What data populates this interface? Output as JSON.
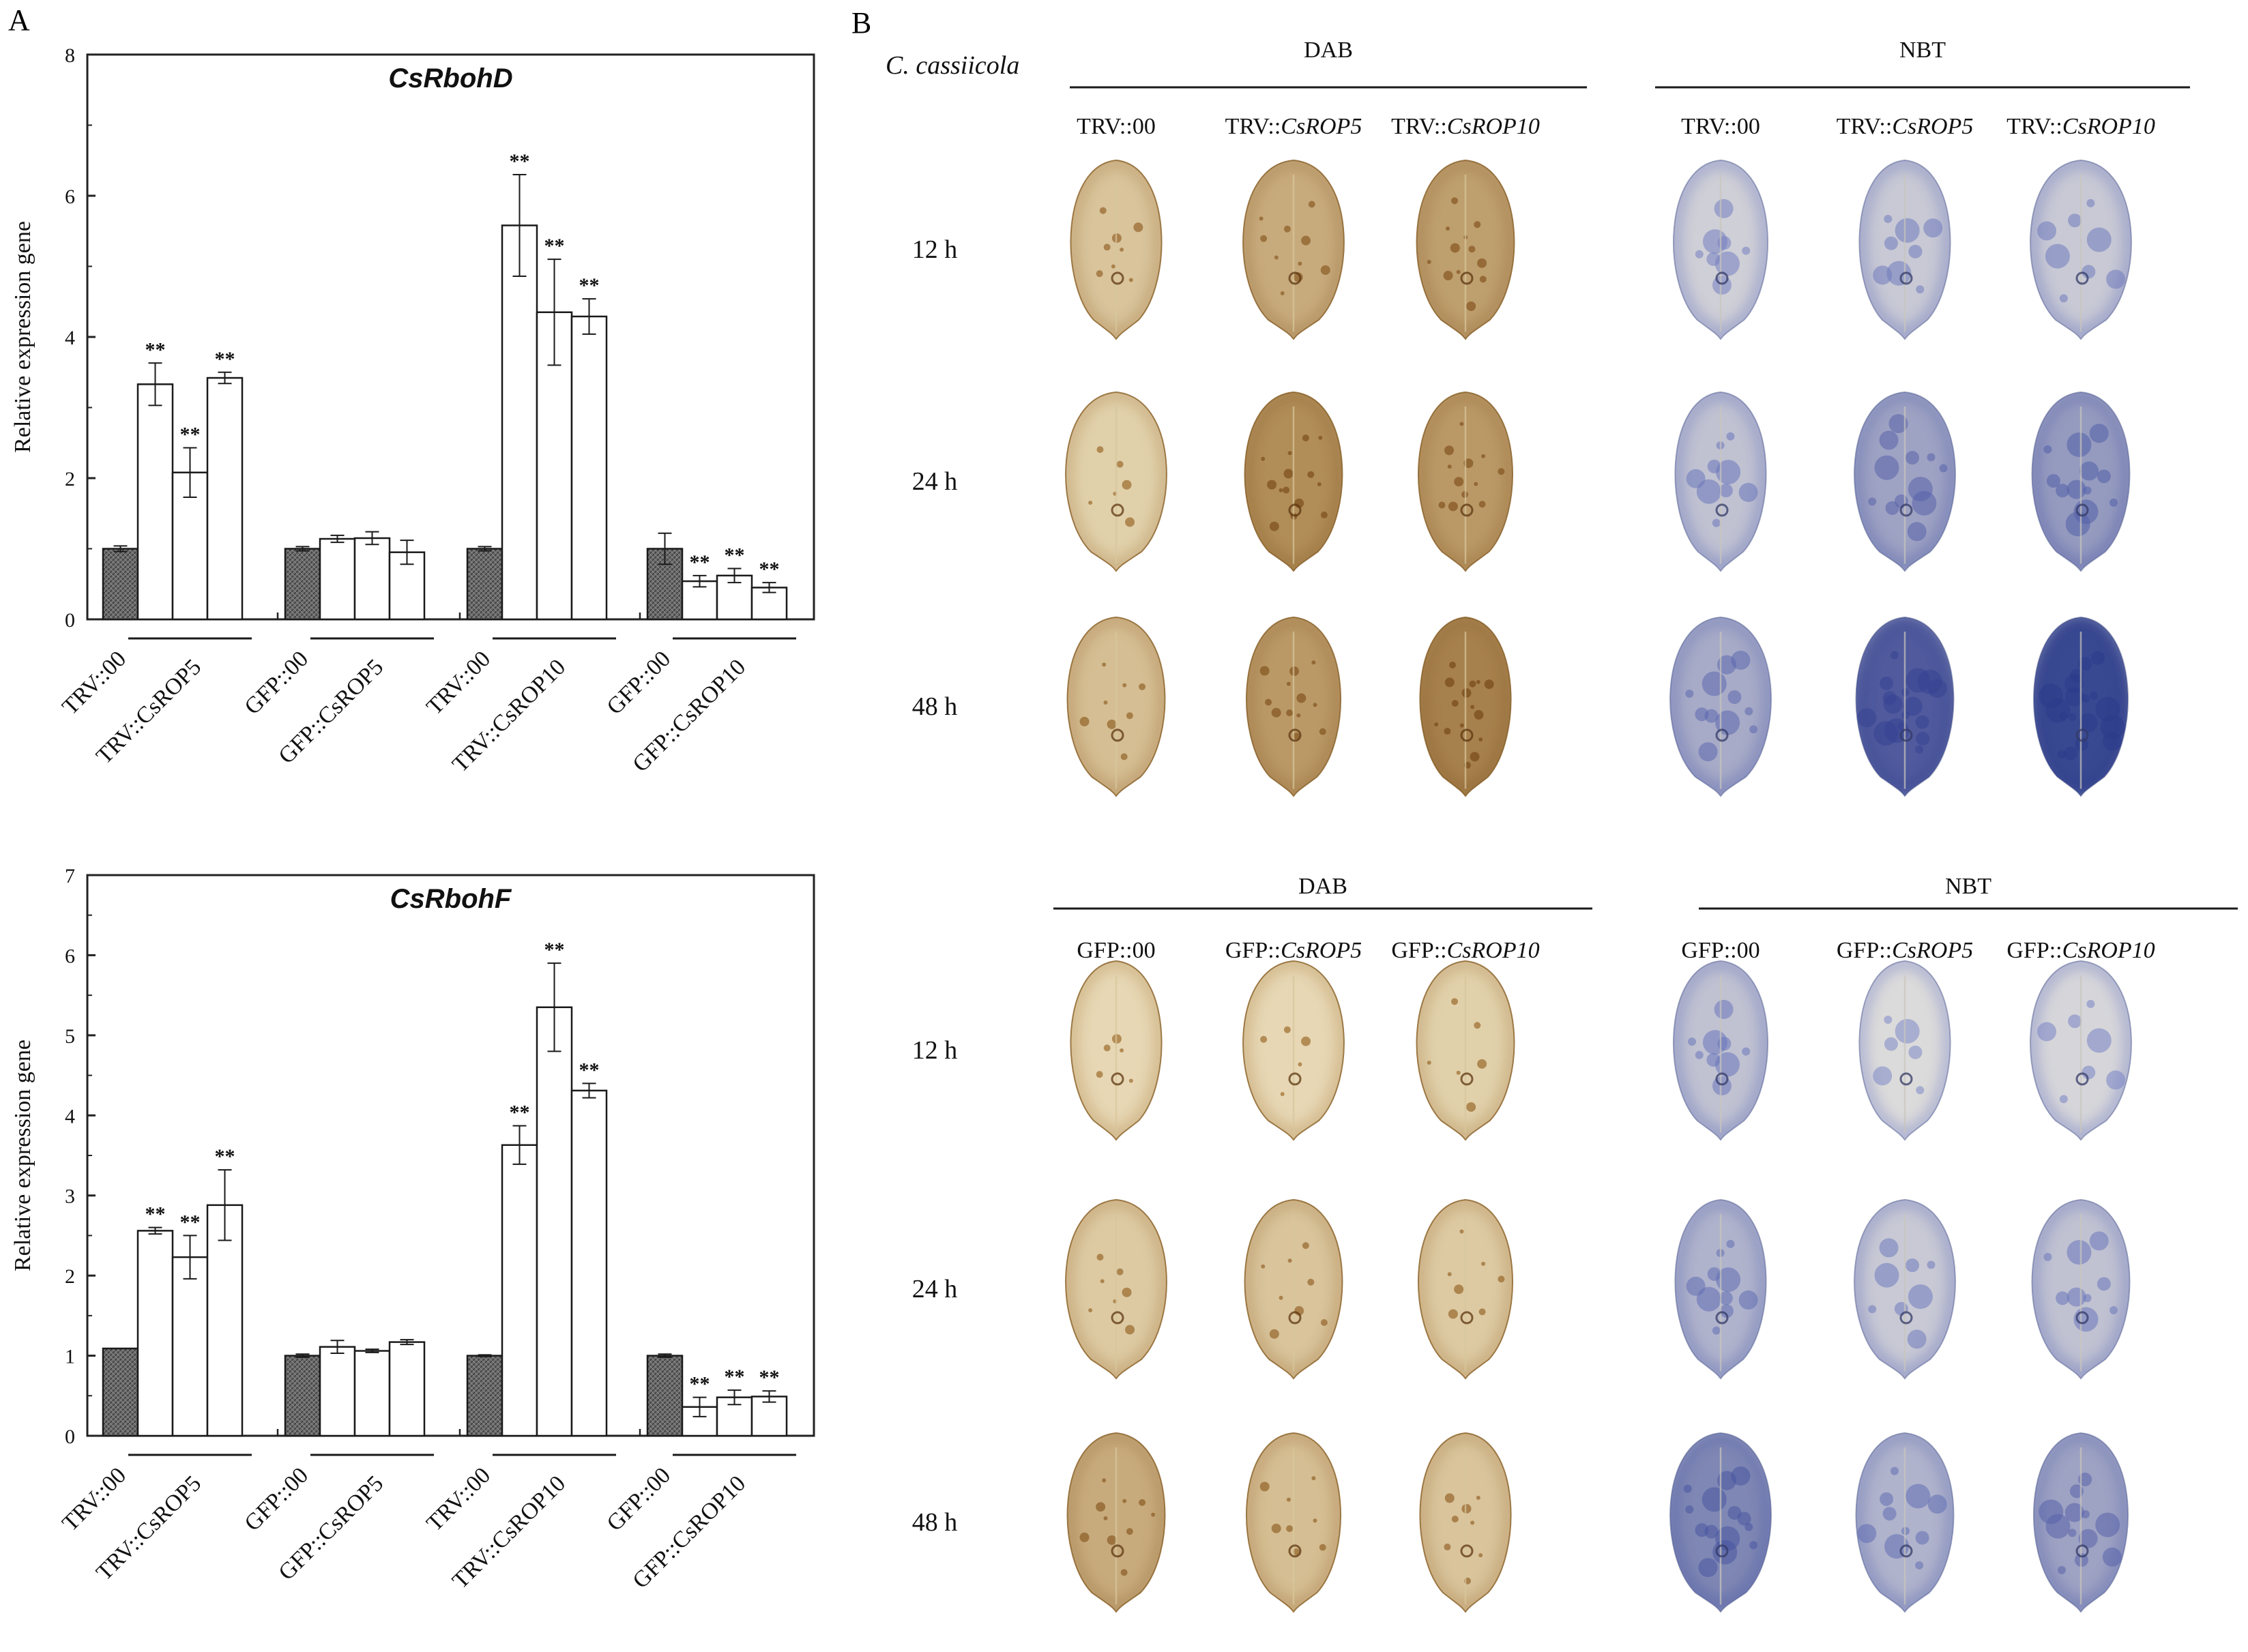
{
  "panel_labels": {
    "a": "A",
    "b": "B"
  },
  "colors": {
    "control_bar": "#6b6b6b",
    "treated_bar": "#ffffff",
    "axis": "#222222",
    "dab_leaf": "#c8a46a",
    "dab_spot": "#8a5a22",
    "nbt_leaf": "#ece9df",
    "nbt_stain": "#4a58b0"
  },
  "chart_data": [
    {
      "type": "bar",
      "title": "CsRbohD",
      "ylabel": "Relative expression gene",
      "xlabel": "",
      "ylim": [
        0,
        8
      ],
      "yticks": [
        "0",
        "2",
        "4",
        "6",
        "8"
      ],
      "groups": [
        {
          "control": "TRV::00",
          "treatment": "TRV::CsROP5",
          "values": [
            1.0,
            3.33,
            2.08,
            3.42
          ],
          "errors": [
            0.04,
            0.3,
            0.35,
            0.08
          ],
          "marks": [
            "",
            "**",
            "**",
            "**"
          ]
        },
        {
          "control": "GFP::00",
          "treatment": "GFP::CsROP5",
          "values": [
            1.0,
            1.14,
            1.15,
            0.95
          ],
          "errors": [
            0.03,
            0.05,
            0.09,
            0.17
          ],
          "marks": [
            "",
            "",
            "",
            ""
          ]
        },
        {
          "control": "TRV::00",
          "treatment": "TRV::CsROP10",
          "values": [
            1.0,
            5.58,
            4.35,
            4.29
          ],
          "errors": [
            0.03,
            0.72,
            0.75,
            0.25
          ],
          "marks": [
            "",
            "**",
            "**",
            "**"
          ]
        },
        {
          "control": "GFP::00",
          "treatment": "GFP::CsROP10",
          "values": [
            1.0,
            0.54,
            0.62,
            0.45
          ],
          "errors": [
            0.22,
            0.08,
            0.1,
            0.07
          ],
          "marks": [
            "",
            "**",
            "**",
            "**"
          ]
        }
      ]
    },
    {
      "type": "bar",
      "title": "CsRbohF",
      "ylabel": "Relative expression gene",
      "xlabel": "",
      "ylim": [
        0,
        7
      ],
      "yticks": [
        "0",
        "1",
        "2",
        "3",
        "4",
        "5",
        "6",
        "7"
      ],
      "groups": [
        {
          "control": "TRV::00",
          "treatment": "TRV::CsROP5",
          "values": [
            1.09,
            2.56,
            2.23,
            2.88
          ],
          "errors": [
            0.0,
            0.04,
            0.27,
            0.44
          ],
          "marks": [
            "",
            "**",
            "**",
            "**"
          ]
        },
        {
          "control": "GFP::00",
          "treatment": "GFP::CsROP5",
          "values": [
            1.0,
            1.11,
            1.06,
            1.17
          ],
          "errors": [
            0.02,
            0.08,
            0.02,
            0.03
          ],
          "marks": [
            "",
            "",
            "",
            ""
          ]
        },
        {
          "control": "TRV::00",
          "treatment": "TRV::CsROP10",
          "values": [
            1.0,
            3.63,
            5.35,
            4.31
          ],
          "errors": [
            0.01,
            0.24,
            0.55,
            0.09
          ],
          "marks": [
            "",
            "**",
            "**",
            "**"
          ]
        },
        {
          "control": "GFP::00",
          "treatment": "GFP::CsROP10",
          "values": [
            1.0,
            0.36,
            0.48,
            0.49
          ],
          "errors": [
            0.02,
            0.12,
            0.09,
            0.07
          ],
          "marks": [
            "",
            "**",
            "**",
            "**"
          ]
        }
      ]
    }
  ],
  "panel_b": {
    "pathogen": "C. cassiicola",
    "blocks": [
      {
        "groups": [
          {
            "stain": "DAB",
            "columns": [
              {
                "prefix": "TRV::",
                "gene": "00"
              },
              {
                "prefix": "TRV::",
                "gene": "CsROP5"
              },
              {
                "prefix": "TRV::",
                "gene": "CsROP10"
              }
            ]
          },
          {
            "stain": "NBT",
            "columns": [
              {
                "prefix": "TRV::",
                "gene": "00"
              },
              {
                "prefix": "TRV::",
                "gene": "CsROP5"
              },
              {
                "prefix": "TRV::",
                "gene": "CsROP10"
              }
            ]
          }
        ],
        "rows": [
          "12 h",
          "24 h",
          "48 h"
        ],
        "intensity": [
          [
            0.25,
            0.45,
            0.55,
            0.25,
            0.3,
            0.3
          ],
          [
            0.15,
            0.7,
            0.6,
            0.35,
            0.55,
            0.6
          ],
          [
            0.3,
            0.6,
            0.8,
            0.5,
            0.9,
            1.0
          ]
        ]
      },
      {
        "groups": [
          {
            "stain": "DAB",
            "columns": [
              {
                "prefix": "GFP::",
                "gene": "00"
              },
              {
                "prefix": "GFP::",
                "gene": "CsROP5"
              },
              {
                "prefix": "GFP::",
                "gene": "CsROP10"
              }
            ]
          },
          {
            "stain": "NBT",
            "columns": [
              {
                "prefix": "GFP::",
                "gene": "00"
              },
              {
                "prefix": "GFP::",
                "gene": "CsROP5"
              },
              {
                "prefix": "GFP::",
                "gene": "CsROP10"
              }
            ]
          }
        ],
        "rows": [
          "12 h",
          "24 h",
          "48 h"
        ],
        "intensity": [
          [
            0.1,
            0.1,
            0.15,
            0.35,
            0.15,
            0.2
          ],
          [
            0.2,
            0.25,
            0.2,
            0.45,
            0.3,
            0.35
          ],
          [
            0.45,
            0.3,
            0.25,
            0.7,
            0.45,
            0.55
          ]
        ]
      }
    ]
  }
}
